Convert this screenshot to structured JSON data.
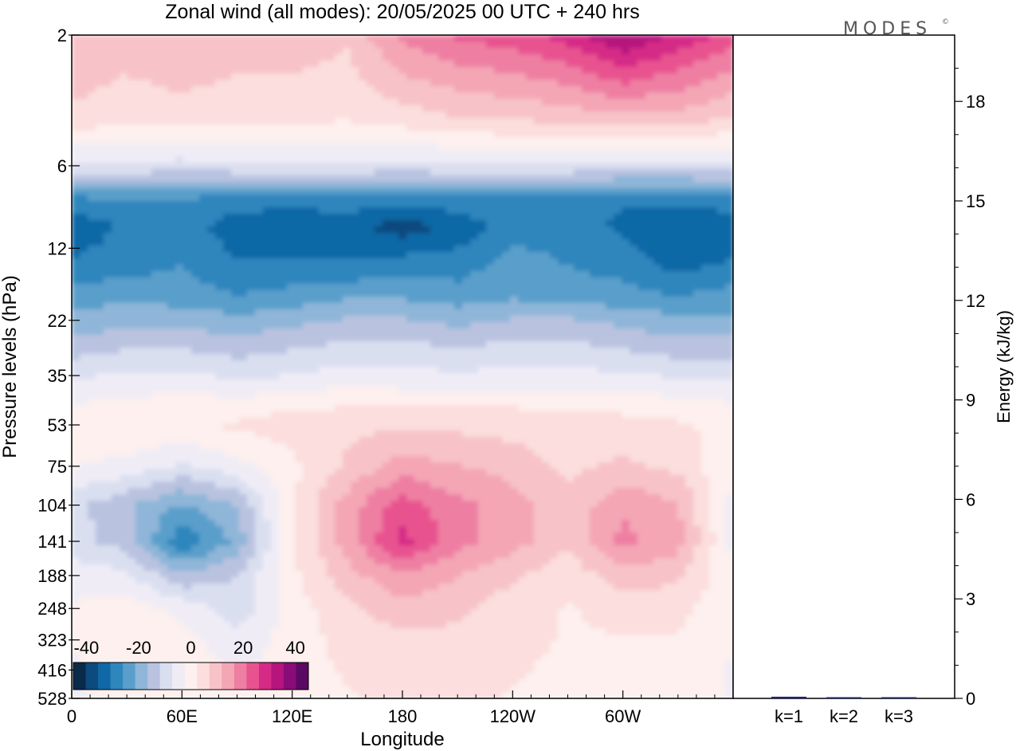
{
  "chart_data": {
    "type": "heatmap",
    "title": "Zonal wind (all modes):  20/05/2025  00 UTC  + 240 hrs",
    "logo": "MODES",
    "logo_mark": "©",
    "xlabel": "Longitude",
    "ylabel": "Pressure levels (hPa)",
    "x_ticks": [
      "0",
      "60E",
      "120E",
      "180",
      "120W",
      "60W"
    ],
    "y_ticks": [
      "2",
      "6",
      "12",
      "22",
      "35",
      "53",
      "75",
      "104",
      "141",
      "188",
      "248",
      "323",
      "416",
      "528"
    ],
    "y_scale": "log",
    "x_range_deg": [
      0,
      360
    ],
    "colorbar": {
      "labels": [
        "-40",
        "-20",
        "0",
        "20",
        "40"
      ],
      "range": [
        -45,
        45
      ],
      "colors": [
        "#0a2a4a",
        "#0d4a7e",
        "#1168a6",
        "#2f86bd",
        "#5a9fcb",
        "#8fb6d8",
        "#b9c3e0",
        "#dadff0",
        "#efecf6",
        "#fdf0ee",
        "#fbdedd",
        "#f7c3c8",
        "#f4a6b5",
        "#ee7fa3",
        "#e8538f",
        "#d62a87",
        "#b5157d",
        "#8a0c78",
        "#5a0a62"
      ]
    },
    "wind_field": {
      "columns": [
        "0",
        "30E",
        "60E",
        "90E",
        "120E",
        "150E",
        "180",
        "150W",
        "120W",
        "90W",
        "60W",
        "30W",
        "0"
      ],
      "rows": [
        {
          "level": "2",
          "values": [
            12,
            10,
            12,
            10,
            10,
            8,
            18,
            22,
            24,
            28,
            36,
            30,
            24
          ]
        },
        {
          "level": "4",
          "values": [
            6,
            4,
            5,
            4,
            4,
            3,
            5,
            7,
            8,
            9,
            11,
            10,
            7
          ]
        },
        {
          "level": "6",
          "values": [
            -8,
            -8,
            -9,
            -8,
            -8,
            -8,
            -8,
            -8,
            -8,
            -8,
            -9,
            -9,
            -8
          ]
        },
        {
          "level": "8",
          "values": [
            -28,
            -26,
            -27,
            -28,
            -28,
            -28,
            -29,
            -28,
            -28,
            -28,
            -30,
            -30,
            -28
          ]
        },
        {
          "level": "10",
          "values": [
            -34,
            -30,
            -28,
            -34,
            -36,
            -34,
            -38,
            -34,
            -28,
            -28,
            -32,
            -34,
            -34
          ]
        },
        {
          "level": "14",
          "values": [
            -30,
            -28,
            -26,
            -30,
            -30,
            -30,
            -28,
            -28,
            -24,
            -26,
            -28,
            -32,
            -30
          ]
        },
        {
          "level": "18",
          "values": [
            -24,
            -22,
            -24,
            -26,
            -24,
            -22,
            -22,
            -24,
            -22,
            -24,
            -24,
            -26,
            -24
          ]
        },
        {
          "level": "22",
          "values": [
            -20,
            -18,
            -18,
            -20,
            -18,
            -16,
            -16,
            -18,
            -16,
            -16,
            -18,
            -20,
            -20
          ]
        },
        {
          "level": "28",
          "values": [
            -14,
            -12,
            -12,
            -14,
            -12,
            -10,
            -10,
            -12,
            -10,
            -10,
            -12,
            -14,
            -14
          ]
        },
        {
          "level": "35",
          "values": [
            -8,
            -6,
            -6,
            -8,
            -7,
            -5,
            -6,
            -6,
            -6,
            -6,
            -6,
            -8,
            -8
          ]
        },
        {
          "level": "45",
          "values": [
            -2,
            -1,
            0,
            0,
            1,
            2,
            2,
            2,
            2,
            1,
            1,
            0,
            -2
          ]
        },
        {
          "level": "53",
          "values": [
            1,
            2,
            2,
            3,
            5,
            6,
            6,
            6,
            5,
            4,
            4,
            3,
            1
          ]
        },
        {
          "level": "75",
          "values": [
            -2,
            -4,
            -8,
            -4,
            1,
            8,
            14,
            12,
            10,
            6,
            8,
            6,
            -2
          ]
        },
        {
          "level": "104",
          "values": [
            -10,
            -16,
            -22,
            -16,
            2,
            14,
            24,
            18,
            14,
            8,
            16,
            12,
            -4
          ]
        },
        {
          "level": "141",
          "values": [
            -10,
            -14,
            -30,
            -20,
            2,
            14,
            28,
            18,
            14,
            8,
            18,
            14,
            -4
          ]
        },
        {
          "level": "188",
          "values": [
            -4,
            -6,
            -16,
            -12,
            1,
            10,
            16,
            12,
            8,
            4,
            10,
            8,
            -2
          ]
        },
        {
          "level": "248",
          "values": [
            -2,
            0,
            -4,
            -10,
            0,
            6,
            10,
            8,
            4,
            2,
            4,
            4,
            -2
          ]
        },
        {
          "level": "323",
          "values": [
            -2,
            0,
            0,
            -6,
            0,
            4,
            6,
            6,
            4,
            2,
            2,
            2,
            -2
          ]
        },
        {
          "level": "416",
          "values": [
            -3,
            0,
            1,
            -3,
            0,
            3,
            5,
            4,
            3,
            1,
            1,
            1,
            -3
          ]
        },
        {
          "level": "528",
          "values": [
            -3,
            -1,
            0,
            -2,
            -1,
            2,
            3,
            3,
            2,
            0,
            0,
            0,
            -3
          ]
        }
      ]
    },
    "energy_panel": {
      "ylabel": "Energy (kJ/kg)",
      "y_ticks": [
        "0",
        "3",
        "6",
        "9",
        "12",
        "15",
        "18"
      ],
      "ylim": [
        0,
        20
      ],
      "categories": [
        "k=1",
        "k=2",
        "k=3"
      ],
      "values": [
        0.05,
        0.02,
        0.03
      ],
      "bar_color": "#1a237e"
    }
  }
}
